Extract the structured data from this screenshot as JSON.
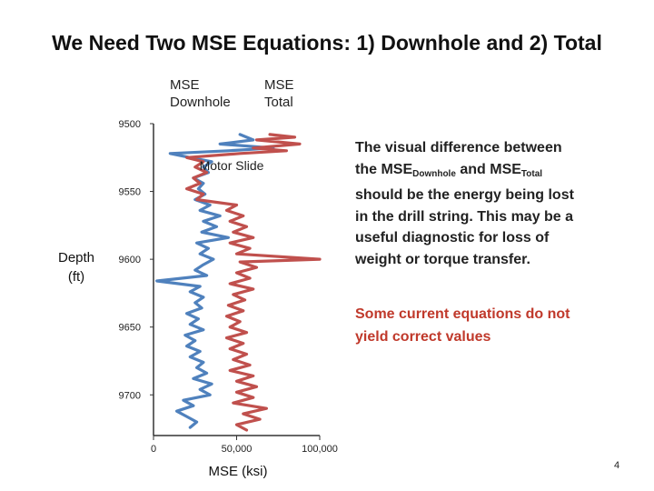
{
  "slide": {
    "title": "We Need Two MSE Equations: 1) Downhole and 2) Total",
    "callout": {
      "line1": "The visual difference between",
      "line2_pre": "the MSE",
      "line2_sub1": "Downhole",
      "line2_mid": " and MSE",
      "line2_sub2": "Total",
      "line3": "should be the energy being lost",
      "line4": "in the drill string. This may be a",
      "line5": "useful diagnostic for loss of",
      "line6": "weight or torque transfer."
    },
    "warning_line1": "Some current equations do not",
    "warning_line2": "yield correct values",
    "page_number": "4"
  },
  "chart_data": {
    "type": "line",
    "orientation": "depth-log",
    "xlabel": "MSE (ksi)",
    "ylabel_line1": "Depth",
    "ylabel_line2": "(ft)",
    "xlim": [
      0,
      100000
    ],
    "ylim": [
      9500,
      9730
    ],
    "y_inverted": true,
    "x_ticks": [
      0,
      50000,
      100000
    ],
    "x_tick_labels": [
      "0",
      "50,000",
      "100,000"
    ],
    "y_ticks": [
      9500,
      9550,
      9600,
      9650,
      9700
    ],
    "y_tick_labels": [
      "9500",
      "9550",
      "9600",
      "9650",
      "9700"
    ],
    "annotation": "Motor Slide",
    "series": [
      {
        "name_line1": "MSE",
        "name_line2": "Downhole",
        "color": "#4f81bd",
        "points": [
          [
            9508,
            52000
          ],
          [
            9512,
            60000
          ],
          [
            9515,
            40000
          ],
          [
            9518,
            72000
          ],
          [
            9520,
            45000
          ],
          [
            9522,
            10000
          ],
          [
            9525,
            22000
          ],
          [
            9528,
            35000
          ],
          [
            9532,
            30000
          ],
          [
            9536,
            33000
          ],
          [
            9540,
            24000
          ],
          [
            9544,
            30000
          ],
          [
            9548,
            27000
          ],
          [
            9552,
            31000
          ],
          [
            9556,
            25000
          ],
          [
            9560,
            34000
          ],
          [
            9564,
            28000
          ],
          [
            9568,
            40000
          ],
          [
            9572,
            30000
          ],
          [
            9576,
            38000
          ],
          [
            9580,
            29000
          ],
          [
            9584,
            45000
          ],
          [
            9588,
            26000
          ],
          [
            9592,
            33000
          ],
          [
            9596,
            28000
          ],
          [
            9600,
            36000
          ],
          [
            9604,
            30000
          ],
          [
            9608,
            25000
          ],
          [
            9612,
            32000
          ],
          [
            9616,
            2000
          ],
          [
            9620,
            28000
          ],
          [
            9624,
            22000
          ],
          [
            9628,
            30000
          ],
          [
            9632,
            25000
          ],
          [
            9636,
            29000
          ],
          [
            9640,
            20000
          ],
          [
            9644,
            27000
          ],
          [
            9648,
            22000
          ],
          [
            9652,
            30000
          ],
          [
            9656,
            19000
          ],
          [
            9660,
            25000
          ],
          [
            9664,
            20000
          ],
          [
            9668,
            28000
          ],
          [
            9672,
            22000
          ],
          [
            9676,
            30000
          ],
          [
            9680,
            26000
          ],
          [
            9684,
            32000
          ],
          [
            9688,
            24000
          ],
          [
            9692,
            35000
          ],
          [
            9696,
            28000
          ],
          [
            9700,
            34000
          ],
          [
            9704,
            18000
          ],
          [
            9708,
            24000
          ],
          [
            9712,
            14000
          ],
          [
            9716,
            20000
          ],
          [
            9720,
            26000
          ],
          [
            9724,
            22000
          ]
        ]
      },
      {
        "name_line1": "MSE",
        "name_line2": "Total",
        "color": "#c0504d",
        "points": [
          [
            9508,
            70000
          ],
          [
            9510,
            85000
          ],
          [
            9512,
            62000
          ],
          [
            9515,
            88000
          ],
          [
            9518,
            60000
          ],
          [
            9520,
            80000
          ],
          [
            9522,
            52000
          ],
          [
            9525,
            20000
          ],
          [
            9528,
            30000
          ],
          [
            9532,
            25000
          ],
          [
            9536,
            32000
          ],
          [
            9540,
            24000
          ],
          [
            9544,
            28000
          ],
          [
            9548,
            20000
          ],
          [
            9552,
            30000
          ],
          [
            9556,
            26000
          ],
          [
            9560,
            50000
          ],
          [
            9564,
            44000
          ],
          [
            9568,
            54000
          ],
          [
            9572,
            46000
          ],
          [
            9576,
            56000
          ],
          [
            9580,
            48000
          ],
          [
            9584,
            60000
          ],
          [
            9588,
            46000
          ],
          [
            9592,
            58000
          ],
          [
            9596,
            50000
          ],
          [
            9600,
            100000
          ],
          [
            9602,
            52000
          ],
          [
            9606,
            62000
          ],
          [
            9610,
            50000
          ],
          [
            9614,
            58000
          ],
          [
            9618,
            46000
          ],
          [
            9622,
            60000
          ],
          [
            9626,
            48000
          ],
          [
            9630,
            55000
          ],
          [
            9634,
            45000
          ],
          [
            9638,
            54000
          ],
          [
            9642,
            44000
          ],
          [
            9646,
            52000
          ],
          [
            9650,
            46000
          ],
          [
            9654,
            56000
          ],
          [
            9658,
            44000
          ],
          [
            9662,
            54000
          ],
          [
            9666,
            46000
          ],
          [
            9670,
            56000
          ],
          [
            9674,
            48000
          ],
          [
            9678,
            58000
          ],
          [
            9682,
            46000
          ],
          [
            9686,
            60000
          ],
          [
            9690,
            50000
          ],
          [
            9694,
            62000
          ],
          [
            9698,
            50000
          ],
          [
            9702,
            60000
          ],
          [
            9706,
            48000
          ],
          [
            9710,
            68000
          ],
          [
            9714,
            54000
          ],
          [
            9718,
            64000
          ],
          [
            9722,
            50000
          ],
          [
            9726,
            56000
          ]
        ]
      }
    ]
  }
}
